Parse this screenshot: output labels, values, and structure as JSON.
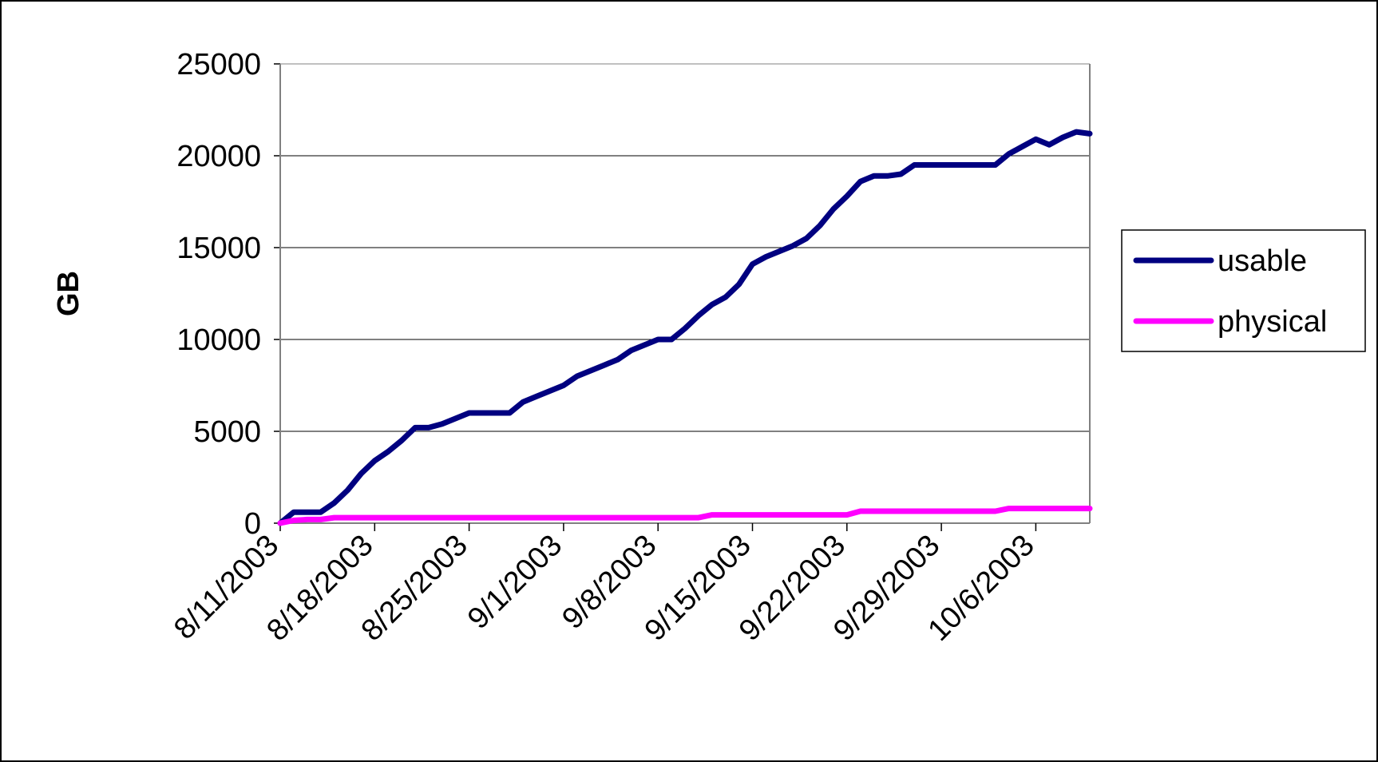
{
  "chart_data": {
    "type": "line",
    "title": "",
    "xlabel": "",
    "ylabel": "GB",
    "ylim": [
      0,
      25000
    ],
    "xlim": [
      "2003-08-11",
      "2003-10-10"
    ],
    "yticks": [
      "0",
      "5000",
      "10000",
      "15000",
      "20000",
      "25000"
    ],
    "xticks": [
      {
        "date": "2003-08-11",
        "label": "8/11/2003"
      },
      {
        "date": "2003-08-18",
        "label": "8/18/2003"
      },
      {
        "date": "2003-08-25",
        "label": "8/25/2003"
      },
      {
        "date": "2003-09-01",
        "label": "9/1/2003"
      },
      {
        "date": "2003-09-08",
        "label": "9/8/2003"
      },
      {
        "date": "2003-09-15",
        "label": "9/15/2003"
      },
      {
        "date": "2003-09-22",
        "label": "9/22/2003"
      },
      {
        "date": "2003-09-29",
        "label": "9/29/2003"
      },
      {
        "date": "2003-10-06",
        "label": "10/6/2003"
      }
    ],
    "grid": {
      "horizontal": true,
      "vertical": false
    },
    "legend": "right",
    "series": [
      {
        "name": "usable",
        "color": "#000080",
        "x": [
          "2003-08-11",
          "2003-08-12",
          "2003-08-13",
          "2003-08-14",
          "2003-08-15",
          "2003-08-16",
          "2003-08-17",
          "2003-08-18",
          "2003-08-19",
          "2003-08-20",
          "2003-08-21",
          "2003-08-22",
          "2003-08-23",
          "2003-08-24",
          "2003-08-25",
          "2003-08-26",
          "2003-08-27",
          "2003-08-28",
          "2003-08-29",
          "2003-08-30",
          "2003-08-31",
          "2003-09-01",
          "2003-09-02",
          "2003-09-03",
          "2003-09-04",
          "2003-09-05",
          "2003-09-06",
          "2003-09-07",
          "2003-09-08",
          "2003-09-09",
          "2003-09-10",
          "2003-09-11",
          "2003-09-12",
          "2003-09-13",
          "2003-09-14",
          "2003-09-15",
          "2003-09-16",
          "2003-09-17",
          "2003-09-18",
          "2003-09-19",
          "2003-09-20",
          "2003-09-21",
          "2003-09-22",
          "2003-09-23",
          "2003-09-24",
          "2003-09-25",
          "2003-09-26",
          "2003-09-27",
          "2003-09-28",
          "2003-09-29",
          "2003-09-30",
          "2003-10-01",
          "2003-10-02",
          "2003-10-03",
          "2003-10-04",
          "2003-10-05",
          "2003-10-06",
          "2003-10-07",
          "2003-10-08",
          "2003-10-09",
          "2003-10-10"
        ],
        "values": [
          0,
          600,
          600,
          600,
          1100,
          1800,
          2700,
          3400,
          3900,
          4500,
          5200,
          5200,
          5400,
          5700,
          6000,
          6000,
          6000,
          6000,
          6600,
          6900,
          7200,
          7500,
          8000,
          8300,
          8600,
          8900,
          9400,
          9700,
          10000,
          10000,
          10600,
          11300,
          11900,
          12300,
          13000,
          14100,
          14500,
          14800,
          15100,
          15500,
          16200,
          17100,
          17800,
          18600,
          18900,
          18900,
          19000,
          19500,
          19500,
          19500,
          19500,
          19500,
          19500,
          19500,
          20100,
          20500,
          20900,
          20600,
          21000,
          21300,
          21200
        ]
      },
      {
        "name": "physical",
        "color": "#ff00ff",
        "x": [
          "2003-08-11",
          "2003-08-12",
          "2003-08-13",
          "2003-08-14",
          "2003-08-15",
          "2003-08-16",
          "2003-08-17",
          "2003-08-18",
          "2003-08-19",
          "2003-08-20",
          "2003-08-21",
          "2003-08-22",
          "2003-08-23",
          "2003-08-24",
          "2003-08-25",
          "2003-08-26",
          "2003-08-27",
          "2003-08-28",
          "2003-08-29",
          "2003-08-30",
          "2003-08-31",
          "2003-09-01",
          "2003-09-02",
          "2003-09-03",
          "2003-09-04",
          "2003-09-05",
          "2003-09-06",
          "2003-09-07",
          "2003-09-08",
          "2003-09-09",
          "2003-09-10",
          "2003-09-11",
          "2003-09-12",
          "2003-09-13",
          "2003-09-14",
          "2003-09-15",
          "2003-09-16",
          "2003-09-17",
          "2003-09-18",
          "2003-09-19",
          "2003-09-20",
          "2003-09-21",
          "2003-09-22",
          "2003-09-23",
          "2003-09-24",
          "2003-09-25",
          "2003-09-26",
          "2003-09-27",
          "2003-09-28",
          "2003-09-29",
          "2003-09-30",
          "2003-10-01",
          "2003-10-02",
          "2003-10-03",
          "2003-10-04",
          "2003-10-05",
          "2003-10-06",
          "2003-10-07",
          "2003-10-08",
          "2003-10-09",
          "2003-10-10"
        ],
        "values": [
          0,
          150,
          200,
          200,
          300,
          300,
          300,
          300,
          300,
          300,
          300,
          300,
          300,
          300,
          300,
          300,
          300,
          300,
          300,
          300,
          300,
          300,
          300,
          300,
          300,
          300,
          300,
          300,
          300,
          300,
          300,
          300,
          450,
          450,
          450,
          450,
          450,
          450,
          450,
          450,
          450,
          450,
          450,
          650,
          650,
          650,
          650,
          650,
          650,
          650,
          650,
          650,
          650,
          650,
          800,
          800,
          800,
          800,
          800,
          800,
          800
        ]
      }
    ]
  }
}
